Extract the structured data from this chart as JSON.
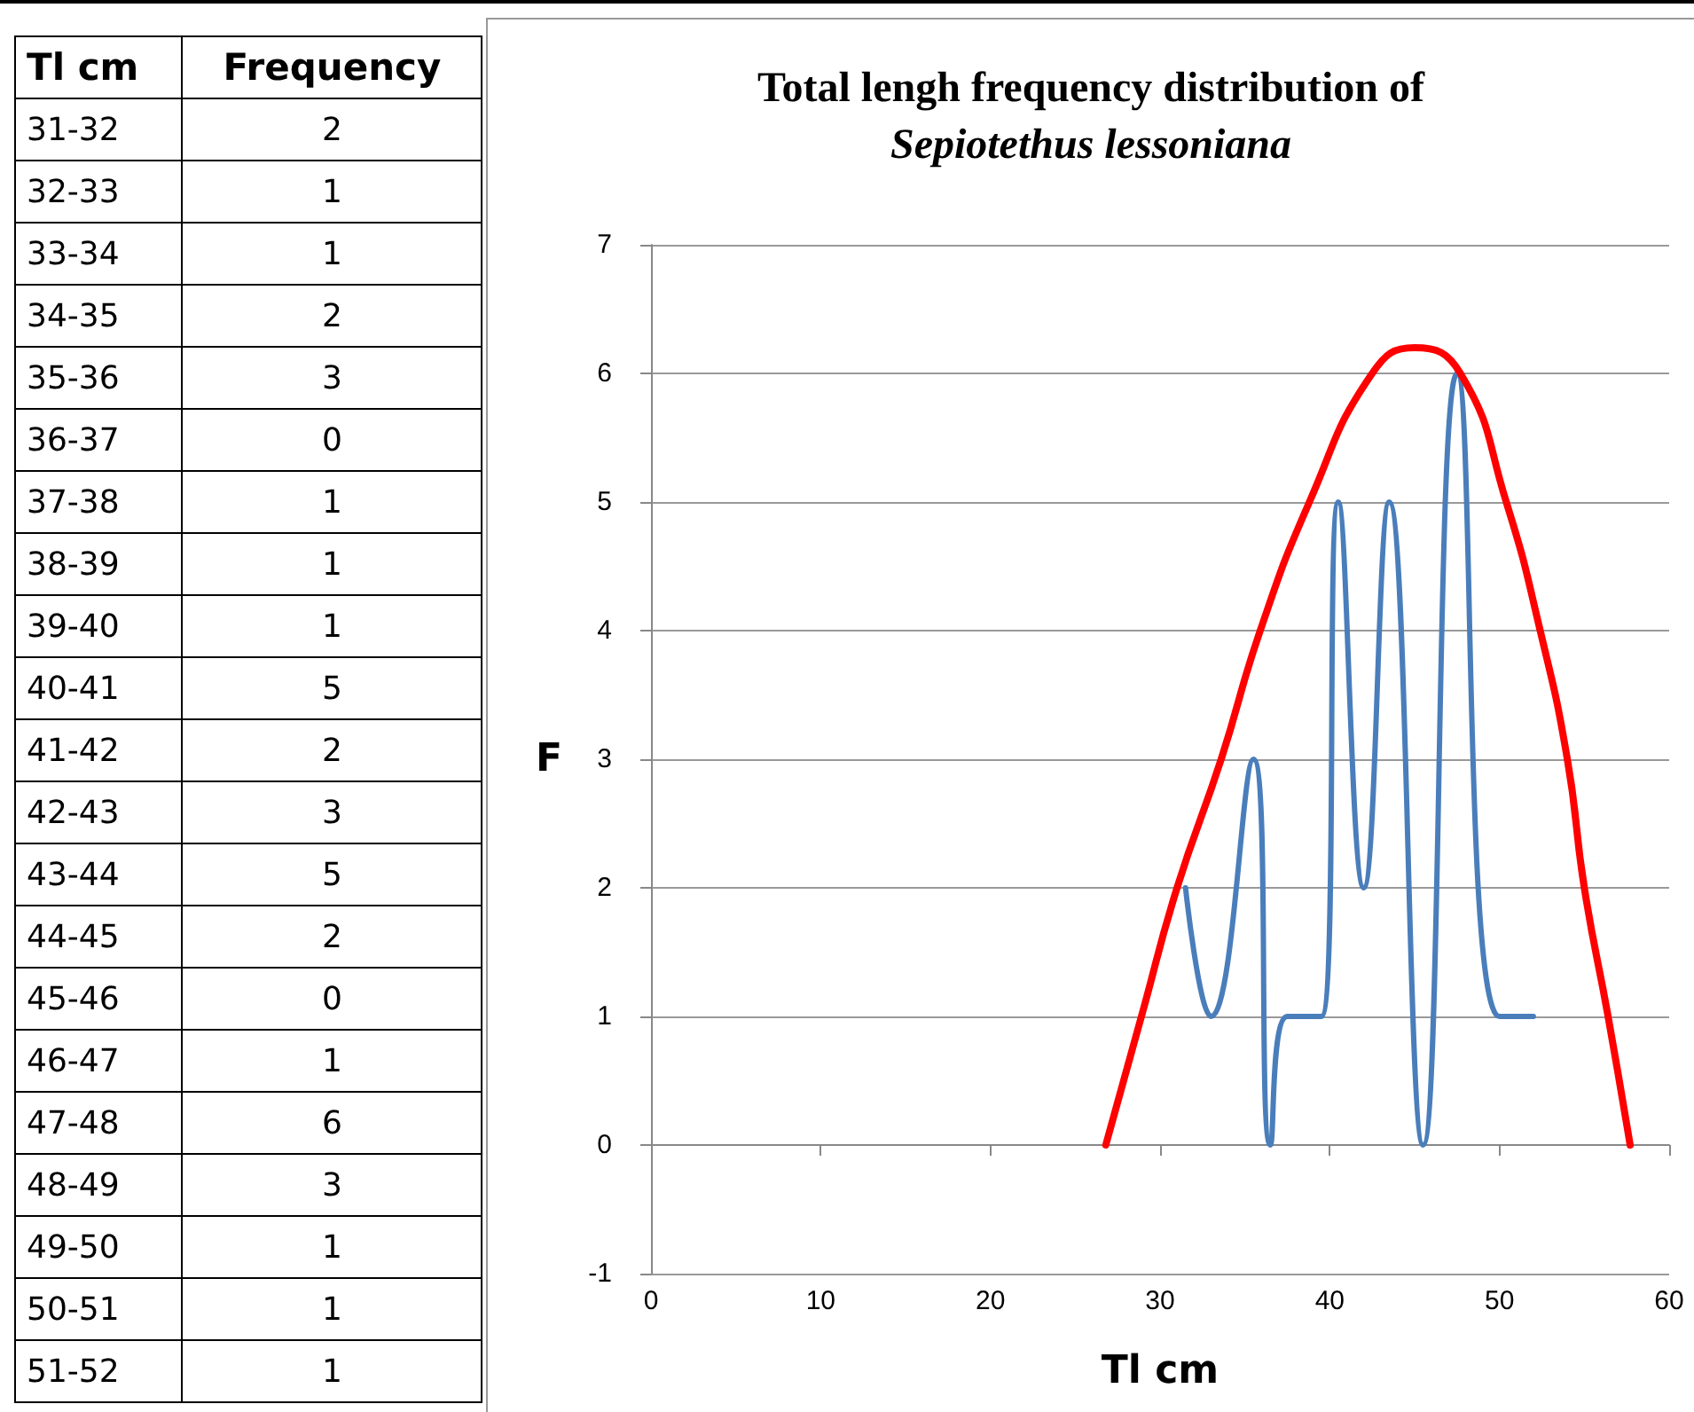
{
  "chart_data": [
    {
      "type": "other",
      "xlabel": "Tl cm",
      "ylabel": "Frequency",
      "data_labels": true,
      "categories": [
        "31-32",
        "32-33",
        "33-34",
        "34-35",
        "35-36",
        "36-37",
        "37-38",
        "38-39",
        "39-40",
        "40-41",
        "41-42",
        "42-43",
        "43-44",
        "44-45",
        "45-46",
        "46-47",
        "47-48",
        "48-49",
        "49-50",
        "50-51",
        "51-52"
      ],
      "values": [
        2,
        1,
        1,
        2,
        3,
        0,
        1,
        1,
        1,
        5,
        2,
        3,
        5,
        2,
        0,
        1,
        6,
        3,
        1,
        1,
        1
      ]
    },
    {
      "type": "line",
      "title": "Total lengh frequency distribution of",
      "subtitle": "Sepiotethus lessoniana",
      "xlabel": "Tl cm",
      "ylabel": "F",
      "xlim": [
        0,
        60
      ],
      "xticks": [
        0,
        10,
        20,
        30,
        40,
        50,
        60
      ],
      "ylim": [
        -1,
        7
      ],
      "yticks": [
        -1,
        0,
        1,
        2,
        3,
        4,
        5,
        6,
        7
      ],
      "grid": "y",
      "marker": "none",
      "line_style": "solid",
      "series": [
        {
          "color": "#4a7ebb",
          "x": [
            31.5,
            33,
            35.5,
            36.5,
            37.5,
            39.5,
            40.5,
            42,
            43.5,
            45.5,
            47.5,
            50,
            52
          ],
          "values": [
            2,
            1,
            3,
            0,
            1,
            1,
            5,
            2,
            5,
            0,
            6,
            1,
            1
          ]
        },
        {
          "color": "#ff0000",
          "x": [
            26.8,
            28.9,
            31,
            33.6,
            35.9,
            38.8,
            42.5,
            45,
            47.7,
            50.4,
            52.4,
            54,
            55,
            56.4,
            57.7
          ],
          "values": [
            0,
            1,
            2,
            3,
            4,
            5,
            6,
            6.2,
            6,
            5,
            4,
            3,
            2,
            1,
            0
          ]
        }
      ]
    }
  ]
}
